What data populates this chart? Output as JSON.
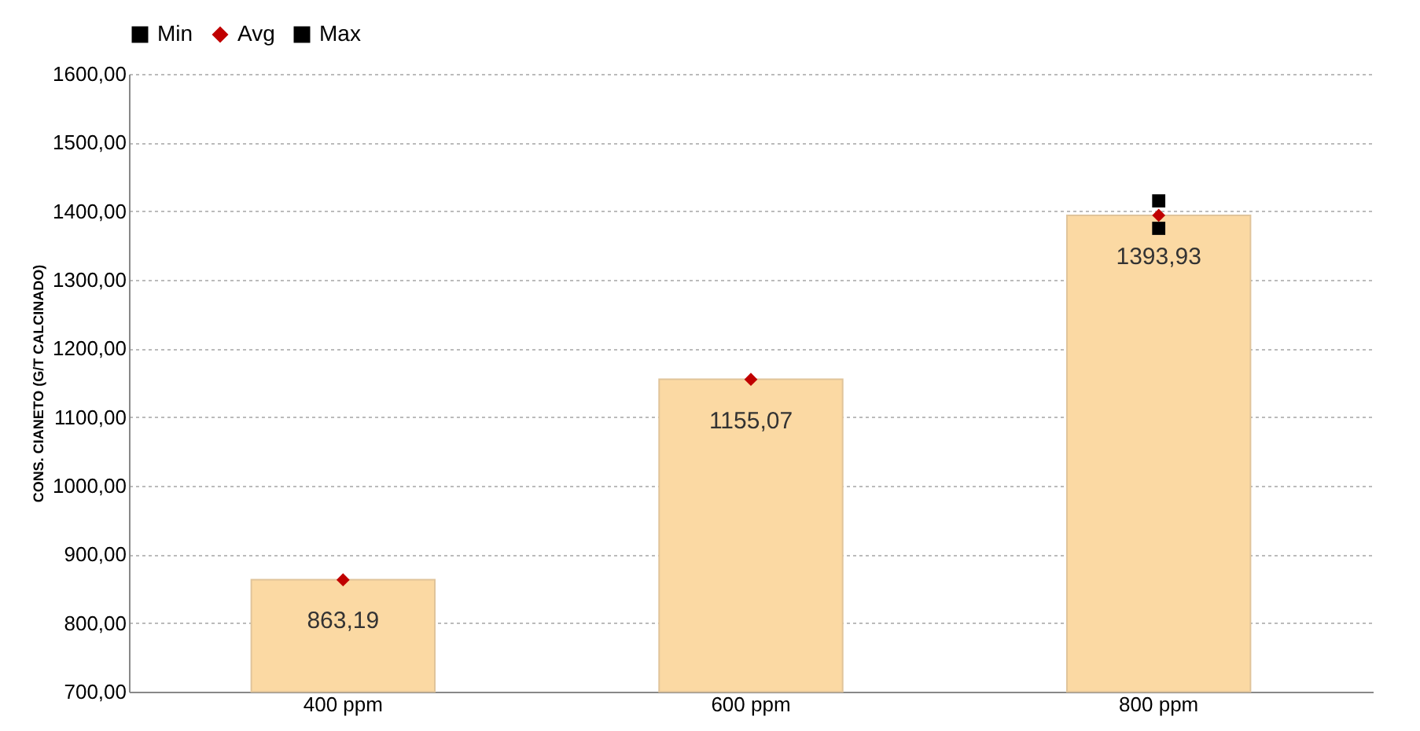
{
  "chart_data": {
    "type": "bar",
    "ylabel": "CONS. CIANETO (G/T CALCINADO)",
    "categories": [
      "400 ppm",
      "600 ppm",
      "800 ppm"
    ],
    "series": [
      {
        "color": "#fbd9a3",
        "values": [
          863.19,
          1155.07,
          1393.93
        ],
        "value_labels": [
          "863,19",
          "1155,07",
          "1393,93"
        ]
      },
      {
        "type": "scatter",
        "name": "Min",
        "color": "#000000",
        "marker": "square",
        "values": [
          null,
          null,
          1375
        ]
      },
      {
        "type": "scatter",
        "name": "Avg",
        "color": "#c00000",
        "marker": "diamond",
        "values": [
          863,
          1155,
          1394
        ]
      },
      {
        "type": "scatter",
        "name": "Max",
        "color": "#000000",
        "marker": "square",
        "values": [
          null,
          null,
          1415
        ]
      }
    ],
    "ylim": [
      700,
      1600
    ],
    "yticks": [
      {
        "value": 700,
        "label": "700,00"
      },
      {
        "value": 800,
        "label": "800,00"
      },
      {
        "value": 900,
        "label": "900,00"
      },
      {
        "value": 1000,
        "label": "1000,00"
      },
      {
        "value": 1100,
        "label": "1100,00"
      },
      {
        "value": 1200,
        "label": "1200,00"
      },
      {
        "value": 1300,
        "label": "1300,00"
      },
      {
        "value": 1400,
        "label": "1400,00"
      },
      {
        "value": 1500,
        "label": "1500,00"
      },
      {
        "value": 1600,
        "label": "1600,00"
      }
    ],
    "grid": "y",
    "legend": "top"
  }
}
